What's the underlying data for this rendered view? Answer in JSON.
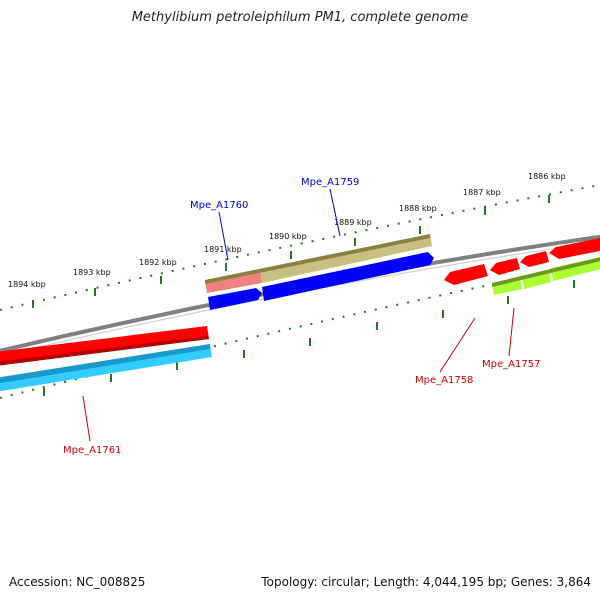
{
  "title": "Methylibium petroleiphilum PM1, complete genome",
  "footer": {
    "accession": "Accession: NC_008825",
    "topology": "Topology: circular; Length: 4,044,195 bp; Genes: 3,864"
  },
  "ticks": [
    {
      "label": "1894 kbp"
    },
    {
      "label": "1893 kbp"
    },
    {
      "label": "1892 kbp"
    },
    {
      "label": "1891 kbp"
    },
    {
      "label": "1890 kbp"
    },
    {
      "label": "1889 kbp"
    },
    {
      "label": "1888 kbp"
    },
    {
      "label": "1887 kbp"
    },
    {
      "label": "1886 kbp"
    }
  ],
  "genes": [
    {
      "label": "Mpe_A1760",
      "color": "#0000cc"
    },
    {
      "label": "Mpe_A1759",
      "color": "#0000cc"
    },
    {
      "label": "Mpe_A1758",
      "color": "#cc0000"
    },
    {
      "label": "Mpe_A1757",
      "color": "#cc0000"
    },
    {
      "label": "Mpe_A1761",
      "color": "#cc0000"
    }
  ],
  "colors": {
    "backbone": "#808080",
    "tick": "#1f7a1f",
    "cds_red": "#ff0000",
    "cds_blue": "#0000ff",
    "cds_cyan": "#33ccff",
    "cds_green": "#aaff33",
    "cds_olive": "#c8c080",
    "cds_pink": "#f08080"
  }
}
